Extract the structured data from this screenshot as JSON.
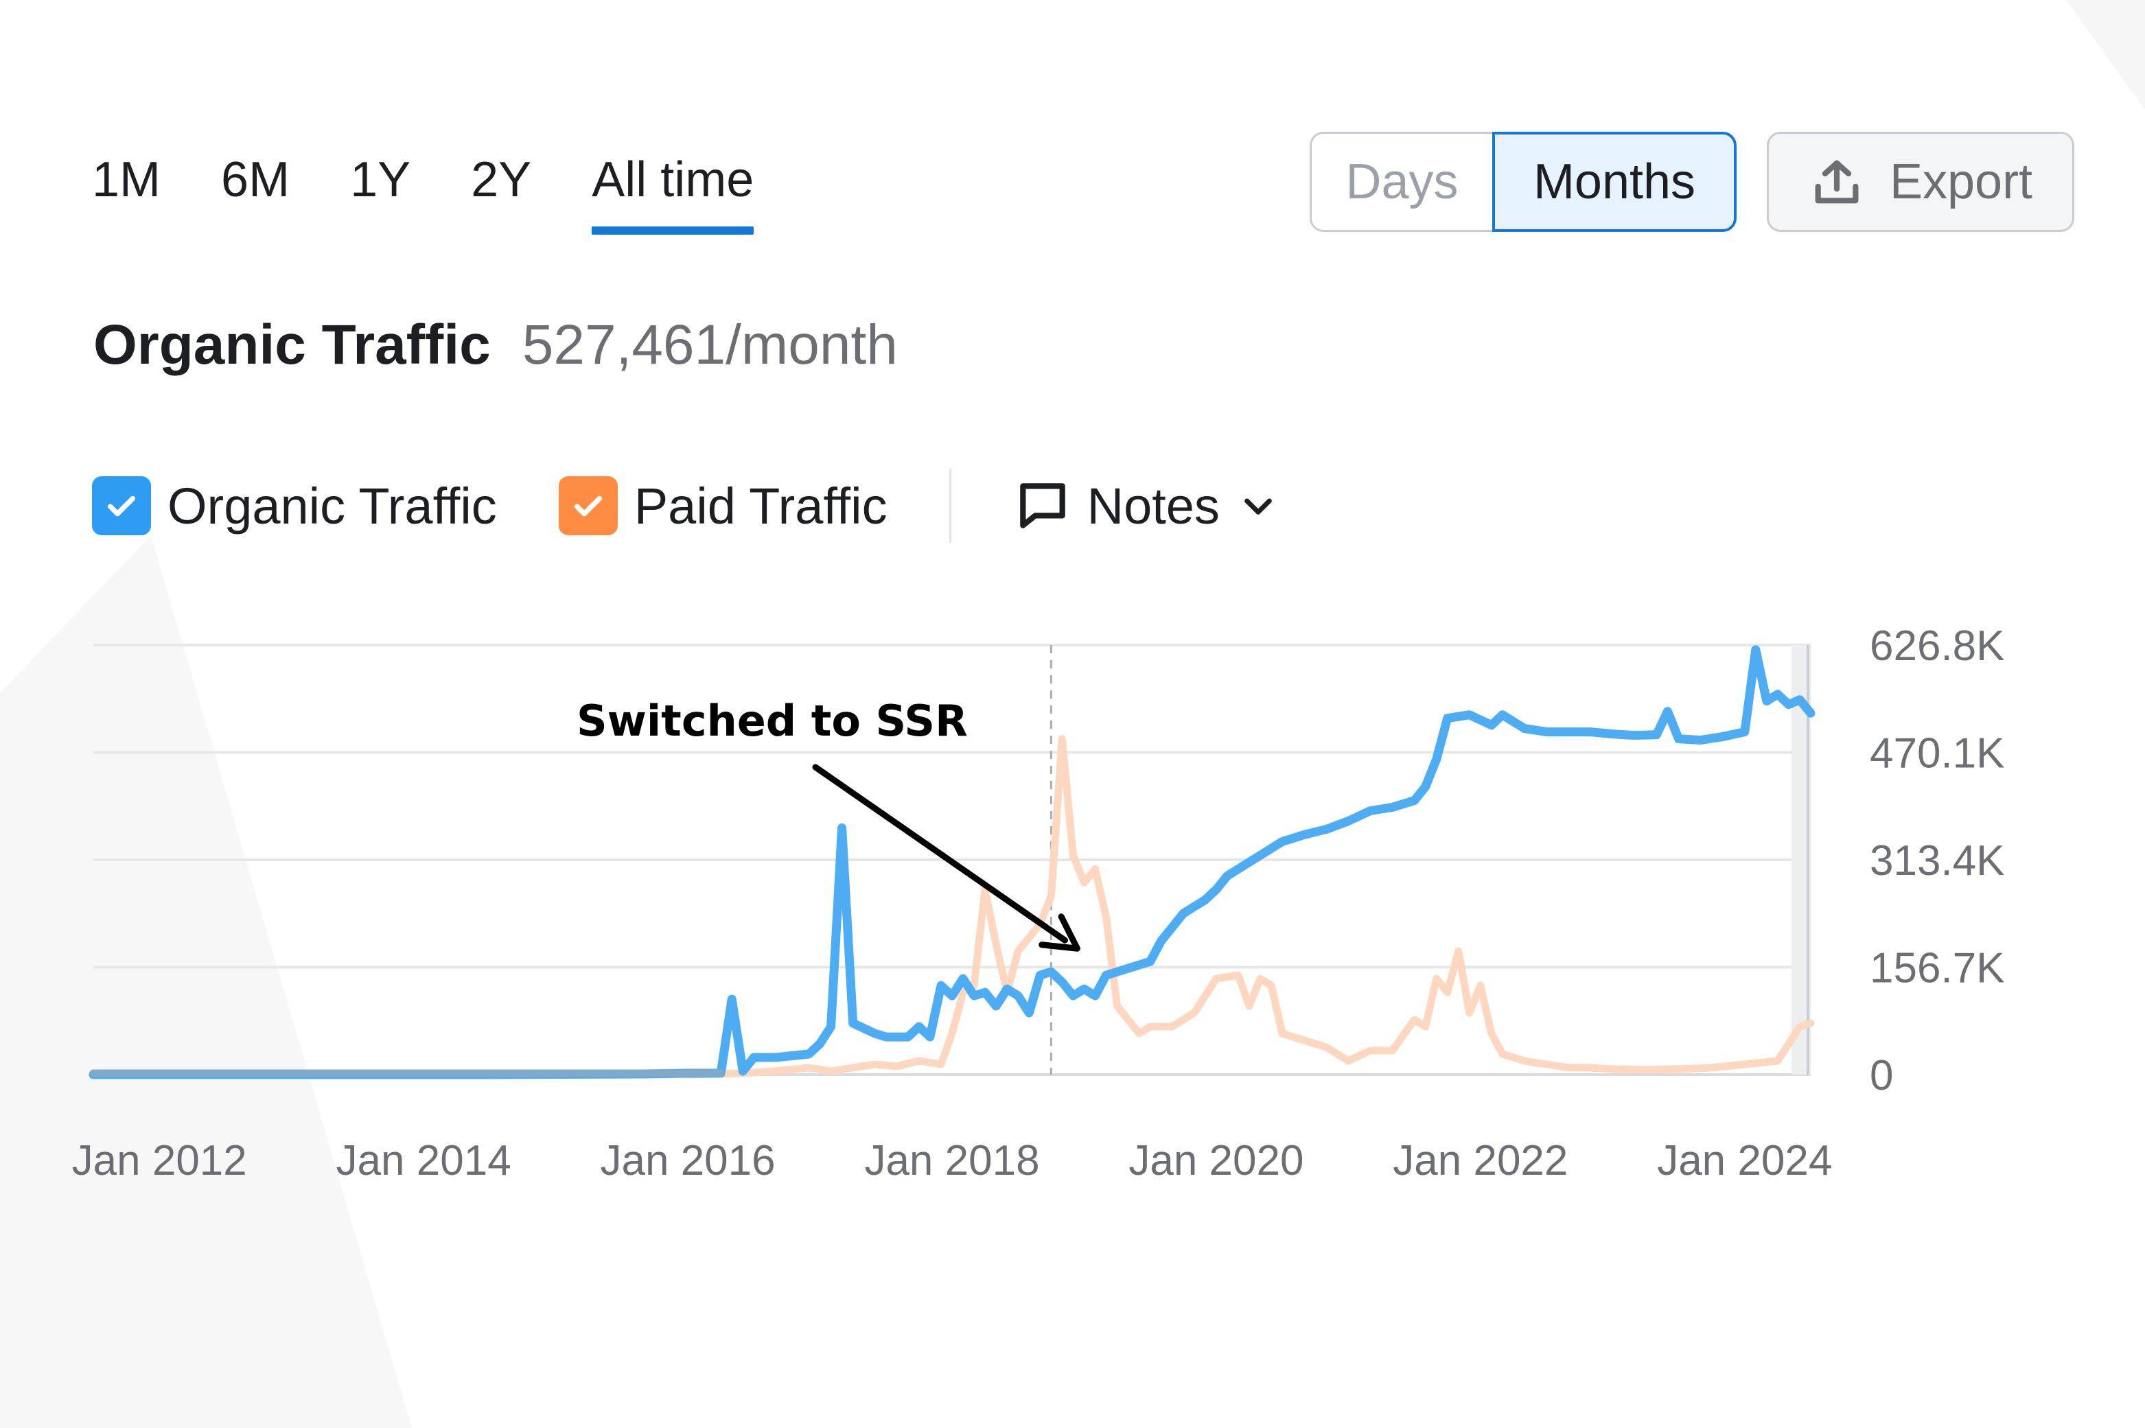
{
  "range_tabs": [
    {
      "label": "1M",
      "active": false
    },
    {
      "label": "6M",
      "active": false
    },
    {
      "label": "1Y",
      "active": false
    },
    {
      "label": "2Y",
      "active": false
    },
    {
      "label": "All time",
      "active": true
    }
  ],
  "granularity": {
    "days_label": "Days",
    "months_label": "Months",
    "selected": "Months"
  },
  "export_label": "Export",
  "header": {
    "title": "Organic Traffic",
    "value": "527,461/month"
  },
  "legend": {
    "organic_label": "Organic Traffic",
    "paid_label": "Paid Traffic",
    "notes_label": "Notes",
    "organic_checked": true,
    "paid_checked": true
  },
  "colors": {
    "organic": "#4eacf2",
    "paid": "#fdd7c0",
    "organic_checkbox": "#2d9cf2",
    "paid_checkbox": "#ff8c42",
    "accent": "#1478d8"
  },
  "icons": {
    "export": "upload-icon",
    "notes": "comment-icon",
    "dropdown": "chevron-down-icon",
    "check": "check-icon"
  },
  "chart_data": {
    "type": "line",
    "x_range": [
      "2011-07",
      "2024-07"
    ],
    "ylim": [
      0,
      626800
    ],
    "ytick_labels": [
      "0",
      "156.7K",
      "313.4K",
      "470.1K",
      "626.8K"
    ],
    "ytick_values": [
      0,
      156700,
      313400,
      470100,
      626800
    ],
    "xtick_labels": [
      "Jan 2012",
      "Jan 2014",
      "Jan 2016",
      "Jan 2018",
      "Jan 2020",
      "Jan 2022",
      "Jan 2024"
    ],
    "xtick_values": [
      "2012-01",
      "2014-01",
      "2016-01",
      "2018-01",
      "2020-01",
      "2022-01",
      "2024-01"
    ],
    "grid": true,
    "marker_line_date": "2018-10",
    "annotation": {
      "text": "Switched to SSR",
      "target_date": "2019-01",
      "target_value": 190000
    },
    "series": [
      {
        "name": "Organic Traffic",
        "points": [
          [
            "2011-07",
            0
          ],
          [
            "2013-01",
            0
          ],
          [
            "2014-06",
            0
          ],
          [
            "2015-09",
            1000
          ],
          [
            "2016-01",
            2000
          ],
          [
            "2016-04",
            2000
          ],
          [
            "2016-05",
            110000
          ],
          [
            "2016-06",
            5000
          ],
          [
            "2016-07",
            25000
          ],
          [
            "2016-09",
            25000
          ],
          [
            "2016-12",
            30000
          ],
          [
            "2017-01",
            45000
          ],
          [
            "2017-02",
            70000
          ],
          [
            "2017-03",
            360000
          ],
          [
            "2017-04",
            75000
          ],
          [
            "2017-06",
            60000
          ],
          [
            "2017-07",
            55000
          ],
          [
            "2017-09",
            55000
          ],
          [
            "2017-10",
            70000
          ],
          [
            "2017-11",
            55000
          ],
          [
            "2017-12",
            130000
          ],
          [
            "2018-01",
            115000
          ],
          [
            "2018-02",
            140000
          ],
          [
            "2018-03",
            115000
          ],
          [
            "2018-04",
            120000
          ],
          [
            "2018-05",
            100000
          ],
          [
            "2018-06",
            125000
          ],
          [
            "2018-07",
            115000
          ],
          [
            "2018-08",
            90000
          ],
          [
            "2018-09",
            145000
          ],
          [
            "2018-10",
            150000
          ],
          [
            "2018-11",
            135000
          ],
          [
            "2018-12",
            115000
          ],
          [
            "2019-01",
            125000
          ],
          [
            "2019-02",
            115000
          ],
          [
            "2019-03",
            145000
          ],
          [
            "2019-04",
            150000
          ],
          [
            "2019-06",
            160000
          ],
          [
            "2019-07",
            165000
          ],
          [
            "2019-08",
            195000
          ],
          [
            "2019-09",
            215000
          ],
          [
            "2019-10",
            235000
          ],
          [
            "2019-11",
            245000
          ],
          [
            "2019-12",
            255000
          ],
          [
            "2020-01",
            270000
          ],
          [
            "2020-02",
            290000
          ],
          [
            "2020-03",
            300000
          ],
          [
            "2020-04",
            310000
          ],
          [
            "2020-05",
            320000
          ],
          [
            "2020-07",
            340000
          ],
          [
            "2020-09",
            350000
          ],
          [
            "2020-11",
            358000
          ],
          [
            "2021-01",
            370000
          ],
          [
            "2021-03",
            385000
          ],
          [
            "2021-05",
            390000
          ],
          [
            "2021-07",
            400000
          ],
          [
            "2021-08",
            420000
          ],
          [
            "2021-09",
            460000
          ],
          [
            "2021-10",
            520000
          ],
          [
            "2021-12",
            525000
          ],
          [
            "2022-02",
            510000
          ],
          [
            "2022-03",
            525000
          ],
          [
            "2022-05",
            505000
          ],
          [
            "2022-07",
            500000
          ],
          [
            "2022-09",
            500000
          ],
          [
            "2022-11",
            500000
          ],
          [
            "2023-01",
            497000
          ],
          [
            "2023-03",
            495000
          ],
          [
            "2023-05",
            496000
          ],
          [
            "2023-06",
            530000
          ],
          [
            "2023-07",
            490000
          ],
          [
            "2023-09",
            488000
          ],
          [
            "2023-11",
            493000
          ],
          [
            "2024-01",
            500000
          ],
          [
            "2024-02",
            620000
          ],
          [
            "2024-03",
            545000
          ],
          [
            "2024-04",
            555000
          ],
          [
            "2024-05",
            540000
          ],
          [
            "2024-06",
            547000
          ],
          [
            "2024-07",
            527461
          ]
        ]
      },
      {
        "name": "Paid Traffic",
        "points": [
          [
            "2016-01",
            0
          ],
          [
            "2016-06",
            2000
          ],
          [
            "2016-09",
            5000
          ],
          [
            "2016-12",
            10000
          ],
          [
            "2017-02",
            5000
          ],
          [
            "2017-06",
            15000
          ],
          [
            "2017-08",
            12000
          ],
          [
            "2017-10",
            20000
          ],
          [
            "2017-12",
            15000
          ],
          [
            "2018-01",
            60000
          ],
          [
            "2018-02",
            120000
          ],
          [
            "2018-03",
            130000
          ],
          [
            "2018-04",
            270000
          ],
          [
            "2018-05",
            190000
          ],
          [
            "2018-06",
            120000
          ],
          [
            "2018-07",
            180000
          ],
          [
            "2018-08",
            200000
          ],
          [
            "2018-09",
            220000
          ],
          [
            "2018-10",
            260000
          ],
          [
            "2018-11",
            490000
          ],
          [
            "2018-12",
            320000
          ],
          [
            "2019-01",
            280000
          ],
          [
            "2019-02",
            300000
          ],
          [
            "2019-03",
            230000
          ],
          [
            "2019-04",
            100000
          ],
          [
            "2019-05",
            80000
          ],
          [
            "2019-06",
            60000
          ],
          [
            "2019-07",
            70000
          ],
          [
            "2019-09",
            70000
          ],
          [
            "2019-11",
            90000
          ],
          [
            "2020-01",
            140000
          ],
          [
            "2020-03",
            145000
          ],
          [
            "2020-04",
            100000
          ],
          [
            "2020-05",
            140000
          ],
          [
            "2020-06",
            130000
          ],
          [
            "2020-07",
            60000
          ],
          [
            "2020-09",
            50000
          ],
          [
            "2020-11",
            40000
          ],
          [
            "2021-01",
            20000
          ],
          [
            "2021-03",
            35000
          ],
          [
            "2021-05",
            35000
          ],
          [
            "2021-07",
            80000
          ],
          [
            "2021-08",
            70000
          ],
          [
            "2021-09",
            140000
          ],
          [
            "2021-10",
            120000
          ],
          [
            "2021-11",
            180000
          ],
          [
            "2021-12",
            90000
          ],
          [
            "2022-01",
            130000
          ],
          [
            "2022-02",
            60000
          ],
          [
            "2022-03",
            30000
          ],
          [
            "2022-05",
            20000
          ],
          [
            "2022-07",
            15000
          ],
          [
            "2022-09",
            10000
          ],
          [
            "2022-11",
            10000
          ],
          [
            "2023-01",
            8000
          ],
          [
            "2023-04",
            7000
          ],
          [
            "2023-07",
            8000
          ],
          [
            "2023-10",
            10000
          ],
          [
            "2024-01",
            15000
          ],
          [
            "2024-04",
            20000
          ],
          [
            "2024-06",
            70000
          ],
          [
            "2024-07",
            75000
          ]
        ]
      }
    ]
  }
}
